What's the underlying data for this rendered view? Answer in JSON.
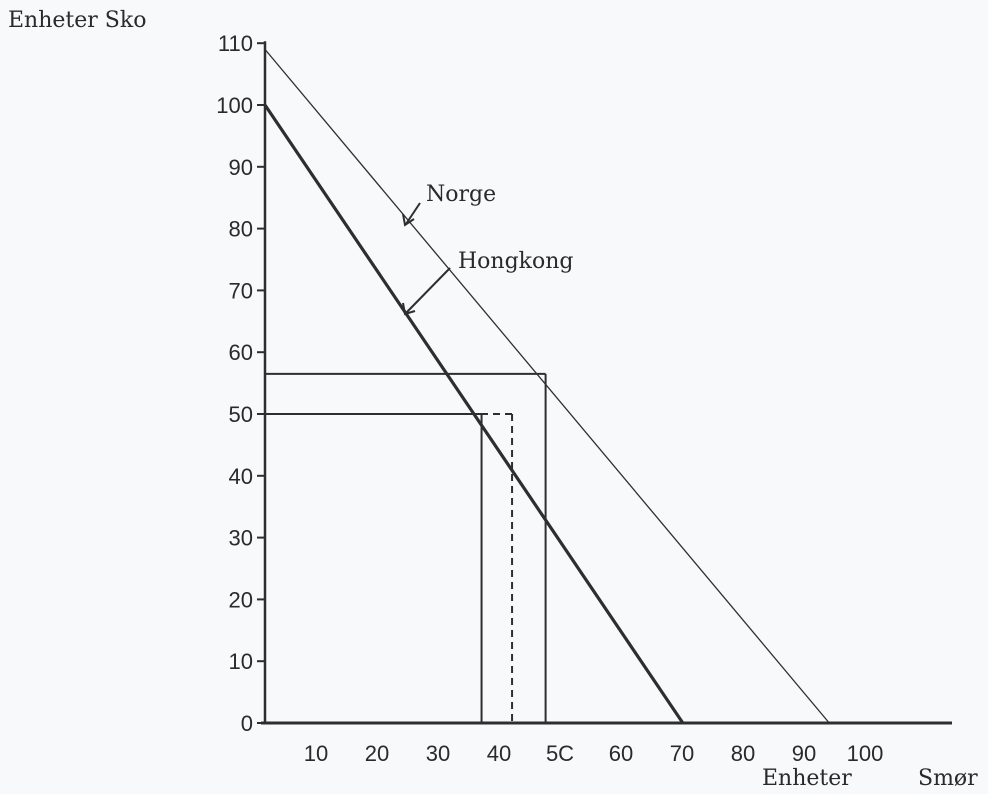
{
  "chart_data": {
    "type": "line",
    "ylabel": "Enheter Sko",
    "xlabel_parts": [
      "Enheter",
      "Smør"
    ],
    "xlim": [
      0,
      100
    ],
    "ylim": [
      0,
      110
    ],
    "x_ticks": [
      "10",
      "20",
      "30",
      "40",
      "5C",
      "60",
      "70",
      "80",
      "90",
      "100"
    ],
    "x_tick_values": [
      10,
      20,
      30,
      40,
      50,
      60,
      70,
      80,
      90,
      100
    ],
    "y_ticks": [
      "0",
      "10",
      "20",
      "30",
      "40",
      "50",
      "60",
      "70",
      "80",
      "90",
      "100",
      "110"
    ],
    "y_tick_values": [
      0,
      10,
      20,
      30,
      40,
      50,
      60,
      70,
      80,
      90,
      100,
      110
    ],
    "grid": false,
    "series": [
      {
        "name": "Norge",
        "x": [
          0,
          92.5
        ],
        "y": [
          109,
          0
        ]
      },
      {
        "name": "Hongkong",
        "x": [
          0,
          68.5
        ],
        "y": [
          100,
          0
        ]
      }
    ],
    "guides": [
      {
        "type": "solid",
        "x": 46,
        "y": 56.5
      },
      {
        "type": "solid",
        "x": 35.5,
        "y": 50
      },
      {
        "type": "dashed",
        "x": 40.5,
        "y": 50
      }
    ]
  }
}
